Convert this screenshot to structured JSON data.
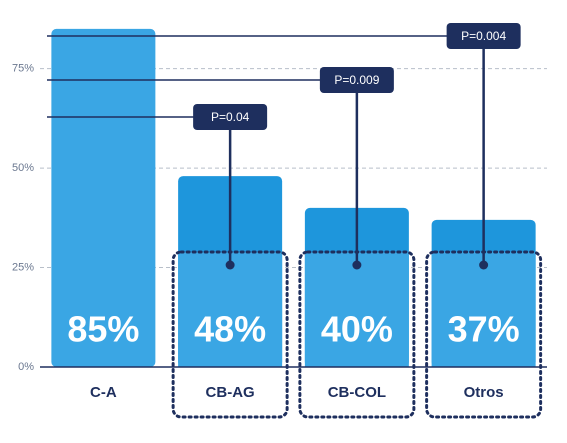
{
  "chart_data": {
    "type": "bar",
    "categories": [
      "C-A",
      "CB-AG",
      "CB-COL",
      "Otros"
    ],
    "values": [
      85,
      48,
      40,
      37
    ],
    "value_labels": [
      "85%",
      "48%",
      "40%",
      "37%"
    ],
    "color": "#1e96dc",
    "ylim": [
      0,
      90
    ],
    "yticks": [
      {
        "value": 0,
        "label": "0%"
      },
      {
        "value": 25,
        "label": "25%"
      },
      {
        "value": 50,
        "label": "50%"
      },
      {
        "value": 75,
        "label": "75%"
      }
    ],
    "grid": true,
    "annotations": [
      "P=0.04",
      "P=0.009",
      "P=0.004"
    ]
  }
}
